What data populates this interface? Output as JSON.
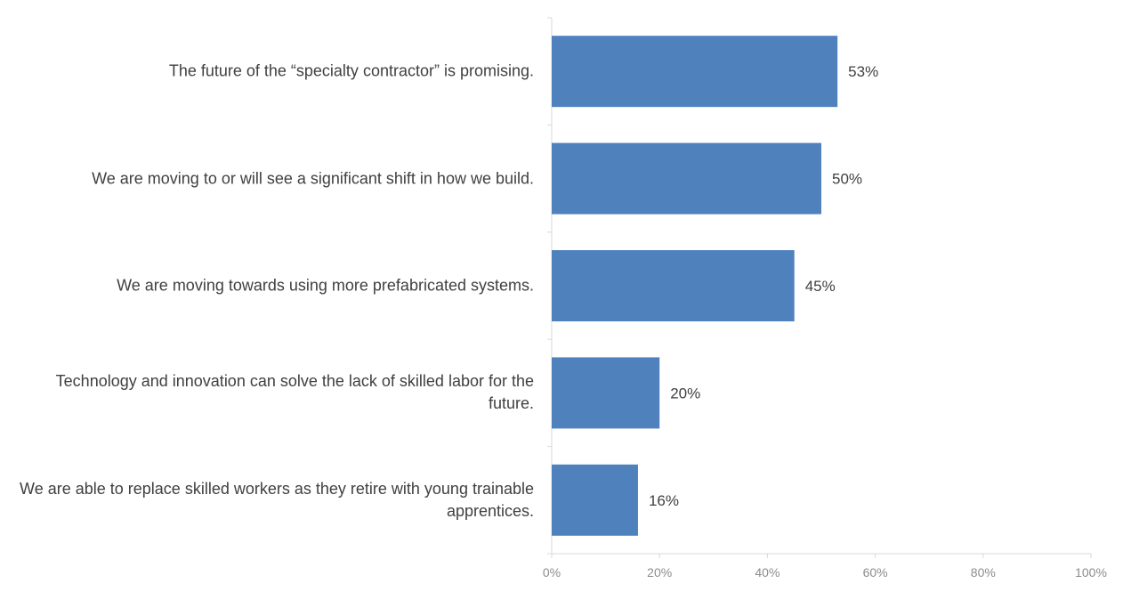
{
  "chart_data": {
    "type": "bar",
    "orientation": "horizontal",
    "title": "",
    "xlabel": "",
    "ylabel": "",
    "categories": [
      "The future of the “specialty contractor” is promising.",
      "We are moving to or will see a significant shift in how we build.",
      "We are moving towards using more prefabricated systems.",
      "Technology and innovation can solve the lack of skilled labor for the future.",
      "We are able to replace skilled workers as they retire with young trainable apprentices."
    ],
    "values": [
      53,
      50,
      45,
      20,
      16
    ],
    "value_labels": [
      "53%",
      "50%",
      "45%",
      "20%",
      "16%"
    ],
    "xlim": [
      0,
      100
    ],
    "ticks": [
      0,
      20,
      40,
      60,
      80,
      100
    ],
    "tick_labels": [
      "0%",
      "20%",
      "40%",
      "60%",
      "80%",
      "100%"
    ],
    "grid": false,
    "legend": "none",
    "bar_color": "#4F81BD",
    "axis_color": "#d9d9d9",
    "label_color": "#404040",
    "tick_color": "#8c8c8c"
  }
}
